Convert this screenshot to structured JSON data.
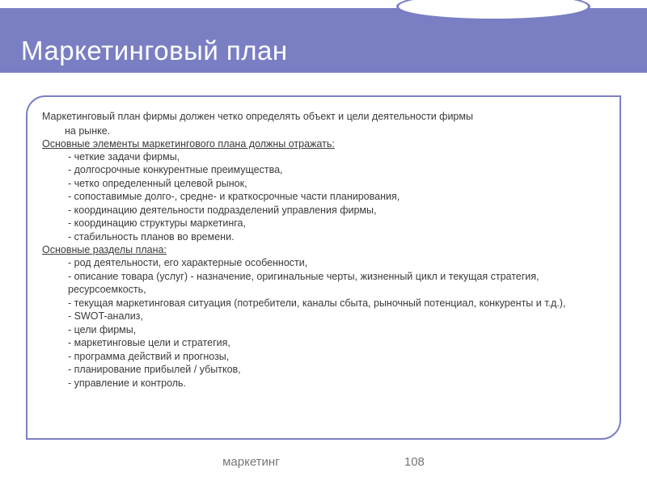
{
  "title": "Маркетинговый план",
  "intro_line1": "Маркетинговый план фирмы должен четко определять объект и цели деятельности фирмы",
  "intro_line2": "на рынке.",
  "section1": {
    "heading": "Основные элементы маркетингового плана должны отражать:",
    "items": [
      "- четкие задачи фирмы,",
      "- долгосрочные конкурентные преимущества,",
      "- четко определенный целевой рынок,",
      "- сопоставимые долго-, средне- и краткосрочные части планирования,",
      "- координацию деятельности подразделений управления фирмы,",
      "- координацию структуры маркетинга,",
      "- стабильность планов во времени."
    ]
  },
  "section2": {
    "heading": "Основные разделы плана:",
    "items": [
      "- род деятельности, его характерные особенности,",
      "- описание товара (услуг) - назначение, оригинальные черты, жизненный цикл и текущая стратегия, ресурсоемкость,",
      "- текущая маркетинговая ситуация (потребители, каналы сбыта, рыночный потенциал, конкуренты и т.д.),",
      "- SWOT-анализ,",
      "- цели фирмы,",
      "- маркетинговые цели и стратегия,",
      "- программа действий и прогнозы,",
      "- планирование прибылей / убытков,",
      "- управление и контроль."
    ]
  },
  "footer_label": "маркетинг",
  "page_number": "108",
  "colors": {
    "header_bg": "#7a7fc4",
    "title_text": "#ffffff",
    "body_text": "#3a3a3a",
    "footer_text": "#777777",
    "frame_border": "#7a7fc4",
    "page_bg": "#ffffff"
  },
  "fonts": {
    "title_size_pt": 33,
    "body_size_pt": 12.5,
    "footer_size_pt": 15
  }
}
